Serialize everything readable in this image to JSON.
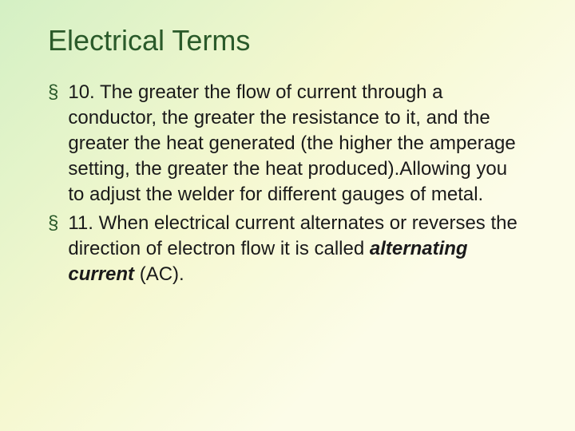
{
  "slide": {
    "title": "Electrical Terms",
    "colors": {
      "title_color": "#2a5a2a",
      "bullet_marker_color": "#2a5a2a",
      "text_color": "#1a1a1a",
      "bg_gradient_start": "#d4f0c4",
      "bg_gradient_mid": "#f5f8d0",
      "bg_gradient_end": "#fcfce8"
    },
    "typography": {
      "title_fontsize": 36,
      "body_fontsize": 24,
      "line_height": 32,
      "font_family": "Arial"
    },
    "bullets": [
      {
        "marker": "§",
        "text": "10. The greater the flow of current through a conductor, the greater the resistance to it, and the greater the heat generated (the higher the amperage setting, the greater the heat produced).Allowing you to adjust the welder for different gauges of metal."
      },
      {
        "marker": "§",
        "text_prefix": "11. When electrical current alternates or reverses the direction of electron flow it is called ",
        "emphasis": "alternating current",
        "text_suffix": " (AC)."
      }
    ]
  }
}
